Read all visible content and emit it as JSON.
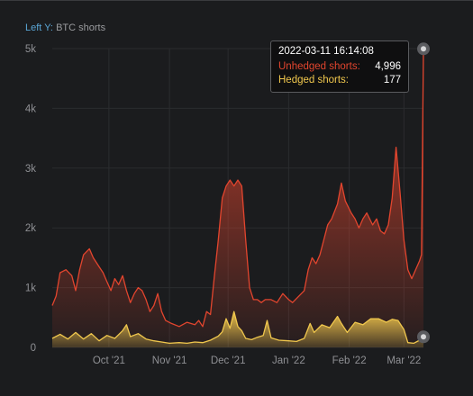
{
  "chart_panel": {
    "axis_prefix": "Left Y:",
    "axis_label": "BTC shorts"
  },
  "tooltip": {
    "timestamp": "2022-03-11 16:14:08",
    "unhedged_label": "Unhedged shorts:",
    "unhedged_value": "4,996",
    "hedged_label": "Hedged shorts:",
    "hedged_value": "177"
  },
  "colors": {
    "background": "#1b1c1e",
    "unhedged": "#e2452e",
    "hedged": "#f0c74d",
    "grid": "#2b2c2f",
    "axis_text": "#8f9094"
  },
  "chart_data": {
    "type": "area",
    "ylabel": "BTC shorts",
    "ylim": [
      0,
      5000
    ],
    "grid": true,
    "y_ticks": [
      "0",
      "1k",
      "2k",
      "3k",
      "4k",
      "5k"
    ],
    "x_ticks": [
      {
        "date": "2021-10-01",
        "label": "Oct '21"
      },
      {
        "date": "2021-11-01",
        "label": "Nov '21"
      },
      {
        "date": "2021-12-01",
        "label": "Dec '21"
      },
      {
        "date": "2022-01-01",
        "label": "Jan '22"
      },
      {
        "date": "2022-02-01",
        "label": "Feb '22"
      },
      {
        "date": "2022-03-01",
        "label": "Mar '22"
      }
    ],
    "xlim": [
      "2021-09-02",
      "2022-03-11"
    ],
    "series": [
      {
        "name": "Unhedged shorts",
        "color": "#e2452e",
        "points": [
          [
            "2021-09-02",
            700
          ],
          [
            "2021-09-04",
            860
          ],
          [
            "2021-09-06",
            1250
          ],
          [
            "2021-09-09",
            1300
          ],
          [
            "2021-09-12",
            1200
          ],
          [
            "2021-09-14",
            950
          ],
          [
            "2021-09-16",
            1300
          ],
          [
            "2021-09-18",
            1550
          ],
          [
            "2021-09-21",
            1650
          ],
          [
            "2021-09-23",
            1500
          ],
          [
            "2021-09-26",
            1350
          ],
          [
            "2021-09-28",
            1250
          ],
          [
            "2021-09-30",
            1100
          ],
          [
            "2021-10-02",
            950
          ],
          [
            "2021-10-04",
            1150
          ],
          [
            "2021-10-06",
            1050
          ],
          [
            "2021-10-08",
            1200
          ],
          [
            "2021-10-10",
            950
          ],
          [
            "2021-10-12",
            750
          ],
          [
            "2021-10-14",
            900
          ],
          [
            "2021-10-16",
            1000
          ],
          [
            "2021-10-18",
            950
          ],
          [
            "2021-10-20",
            800
          ],
          [
            "2021-10-22",
            600
          ],
          [
            "2021-10-24",
            700
          ],
          [
            "2021-10-26",
            900
          ],
          [
            "2021-10-28",
            600
          ],
          [
            "2021-10-30",
            450
          ],
          [
            "2021-11-02",
            400
          ],
          [
            "2021-11-06",
            350
          ],
          [
            "2021-11-10",
            420
          ],
          [
            "2021-11-14",
            380
          ],
          [
            "2021-11-16",
            450
          ],
          [
            "2021-11-18",
            350
          ],
          [
            "2021-11-20",
            600
          ],
          [
            "2021-11-22",
            550
          ],
          [
            "2021-11-24",
            1200
          ],
          [
            "2021-11-26",
            1800
          ],
          [
            "2021-11-28",
            2500
          ],
          [
            "2021-11-30",
            2700
          ],
          [
            "2021-12-02",
            2800
          ],
          [
            "2021-12-04",
            2700
          ],
          [
            "2021-12-06",
            2800
          ],
          [
            "2021-12-08",
            2700
          ],
          [
            "2021-12-10",
            1800
          ],
          [
            "2021-12-12",
            1000
          ],
          [
            "2021-12-14",
            800
          ],
          [
            "2021-12-16",
            800
          ],
          [
            "2021-12-18",
            750
          ],
          [
            "2021-12-20",
            800
          ],
          [
            "2021-12-23",
            800
          ],
          [
            "2021-12-26",
            750
          ],
          [
            "2021-12-29",
            900
          ],
          [
            "2022-01-01",
            800
          ],
          [
            "2022-01-03",
            750
          ],
          [
            "2022-01-06",
            850
          ],
          [
            "2022-01-09",
            950
          ],
          [
            "2022-01-11",
            1300
          ],
          [
            "2022-01-13",
            1500
          ],
          [
            "2022-01-15",
            1400
          ],
          [
            "2022-01-17",
            1550
          ],
          [
            "2022-01-19",
            1800
          ],
          [
            "2022-01-21",
            2050
          ],
          [
            "2022-01-23",
            2150
          ],
          [
            "2022-01-26",
            2400
          ],
          [
            "2022-01-28",
            2750
          ],
          [
            "2022-01-30",
            2450
          ],
          [
            "2022-02-02",
            2250
          ],
          [
            "2022-02-04",
            2150
          ],
          [
            "2022-02-06",
            2000
          ],
          [
            "2022-02-08",
            2150
          ],
          [
            "2022-02-10",
            2250
          ],
          [
            "2022-02-13",
            2050
          ],
          [
            "2022-02-15",
            2150
          ],
          [
            "2022-02-17",
            1950
          ],
          [
            "2022-02-19",
            1900
          ],
          [
            "2022-02-21",
            2050
          ],
          [
            "2022-02-23",
            2500
          ],
          [
            "2022-02-25",
            3350
          ],
          [
            "2022-02-27",
            2600
          ],
          [
            "2022-03-01",
            1800
          ],
          [
            "2022-03-03",
            1300
          ],
          [
            "2022-03-05",
            1150
          ],
          [
            "2022-03-07",
            1300
          ],
          [
            "2022-03-09",
            1450
          ],
          [
            "2022-03-10",
            1550
          ],
          [
            "2022-03-11",
            4996
          ]
        ]
      },
      {
        "name": "Hedged shorts",
        "color": "#f0c74d",
        "points": [
          [
            "2021-09-02",
            150
          ],
          [
            "2021-09-06",
            220
          ],
          [
            "2021-09-10",
            140
          ],
          [
            "2021-09-14",
            250
          ],
          [
            "2021-09-18",
            140
          ],
          [
            "2021-09-22",
            230
          ],
          [
            "2021-09-26",
            110
          ],
          [
            "2021-09-30",
            200
          ],
          [
            "2021-10-04",
            150
          ],
          [
            "2021-10-08",
            280
          ],
          [
            "2021-10-10",
            380
          ],
          [
            "2021-10-12",
            180
          ],
          [
            "2021-10-16",
            230
          ],
          [
            "2021-10-20",
            140
          ],
          [
            "2021-10-24",
            110
          ],
          [
            "2021-10-28",
            90
          ],
          [
            "2021-11-01",
            70
          ],
          [
            "2021-11-06",
            80
          ],
          [
            "2021-11-10",
            70
          ],
          [
            "2021-11-14",
            90
          ],
          [
            "2021-11-18",
            80
          ],
          [
            "2021-11-22",
            120
          ],
          [
            "2021-11-26",
            190
          ],
          [
            "2021-11-28",
            260
          ],
          [
            "2021-11-30",
            480
          ],
          [
            "2021-12-02",
            320
          ],
          [
            "2021-12-04",
            600
          ],
          [
            "2021-12-06",
            350
          ],
          [
            "2021-12-08",
            280
          ],
          [
            "2021-12-10",
            150
          ],
          [
            "2021-12-13",
            130
          ],
          [
            "2021-12-16",
            170
          ],
          [
            "2021-12-19",
            200
          ],
          [
            "2021-12-21",
            450
          ],
          [
            "2021-12-23",
            160
          ],
          [
            "2021-12-27",
            120
          ],
          [
            "2022-01-01",
            110
          ],
          [
            "2022-01-05",
            100
          ],
          [
            "2022-01-09",
            150
          ],
          [
            "2022-01-12",
            400
          ],
          [
            "2022-01-14",
            250
          ],
          [
            "2022-01-18",
            380
          ],
          [
            "2022-01-22",
            330
          ],
          [
            "2022-01-26",
            520
          ],
          [
            "2022-01-28",
            400
          ],
          [
            "2022-01-31",
            250
          ],
          [
            "2022-02-04",
            420
          ],
          [
            "2022-02-08",
            380
          ],
          [
            "2022-02-12",
            480
          ],
          [
            "2022-02-16",
            480
          ],
          [
            "2022-02-20",
            420
          ],
          [
            "2022-02-23",
            470
          ],
          [
            "2022-02-26",
            450
          ],
          [
            "2022-03-01",
            300
          ],
          [
            "2022-03-03",
            80
          ],
          [
            "2022-03-06",
            70
          ],
          [
            "2022-03-09",
            120
          ],
          [
            "2022-03-11",
            177
          ]
        ]
      }
    ]
  }
}
